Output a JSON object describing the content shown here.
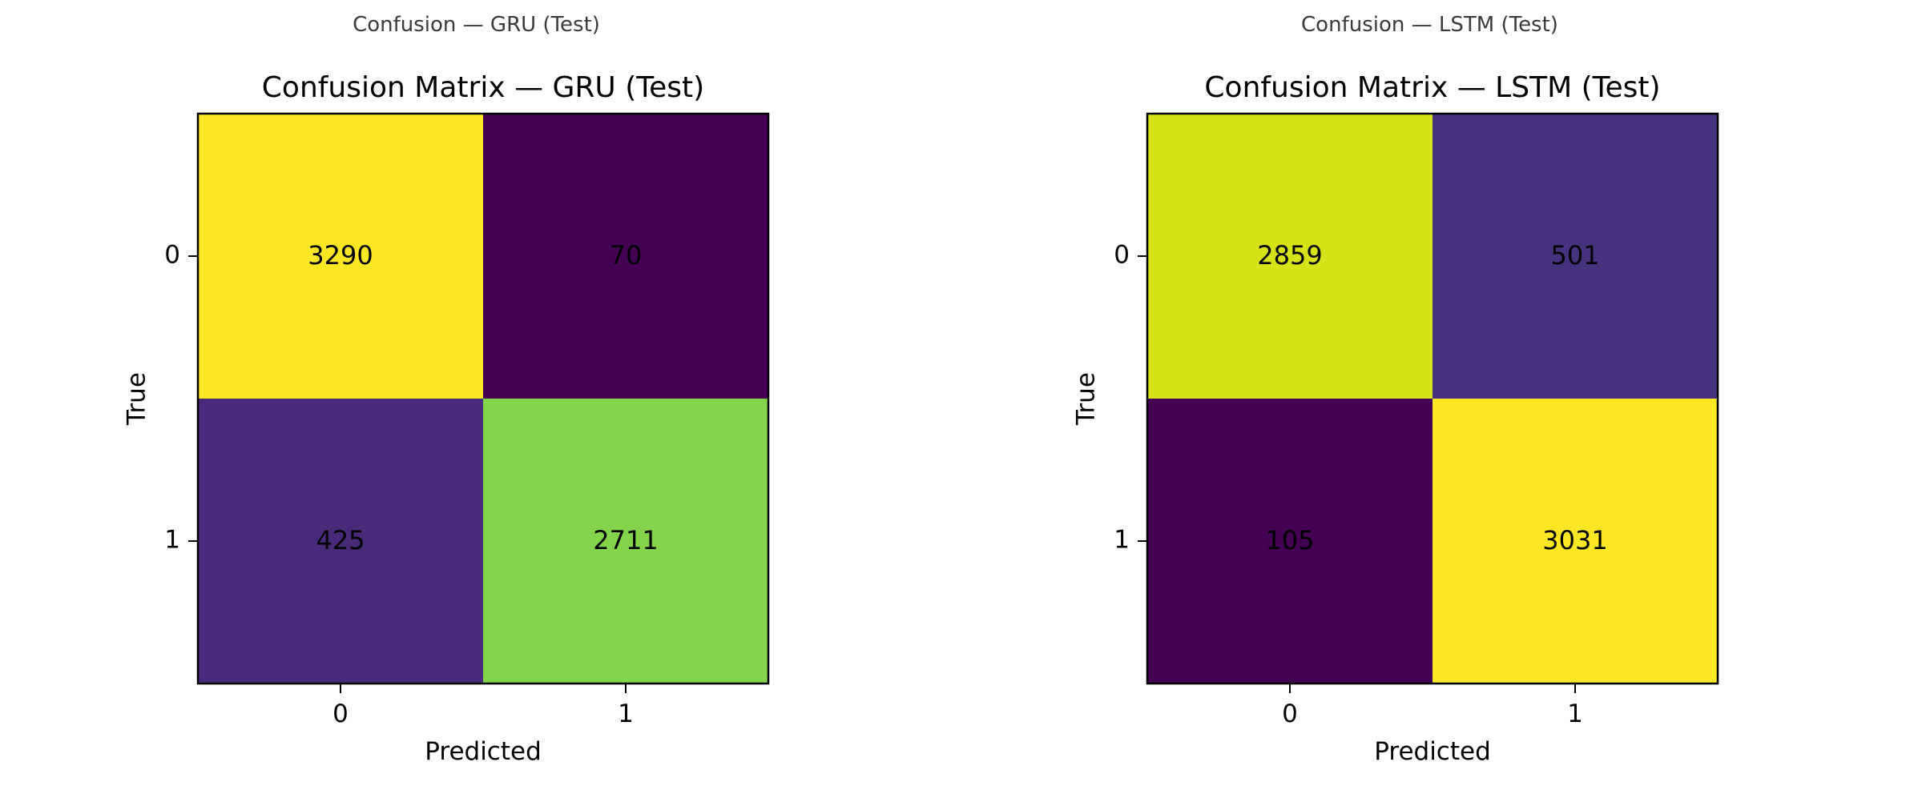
{
  "panels": [
    {
      "caption": "Confusion — GRU (Test)"
    },
    {
      "caption": "Confusion — LSTM (Test)"
    }
  ],
  "chart_data": [
    {
      "type": "heatmap",
      "title": "Confusion Matrix — GRU (Test)",
      "xlabel": "Predicted",
      "ylabel": "True",
      "x_categories": [
        "0",
        "1"
      ],
      "y_categories": [
        "0",
        "1"
      ],
      "values": [
        [
          3290,
          70
        ],
        [
          425,
          2711
        ]
      ],
      "colormap": "viridis",
      "colors": [
        [
          "#fde725",
          "#440154"
        ],
        [
          "#472a7a",
          "#84d44b"
        ]
      ]
    },
    {
      "type": "heatmap",
      "title": "Confusion Matrix — LSTM (Test)",
      "xlabel": "Predicted",
      "ylabel": "True",
      "x_categories": [
        "0",
        "1"
      ],
      "y_categories": [
        "0",
        "1"
      ],
      "values": [
        [
          2859,
          501
        ],
        [
          105,
          3031
        ]
      ],
      "colormap": "viridis",
      "colors": [
        [
          "#d8e219",
          "#46327e"
        ],
        [
          "#440154",
          "#fde725"
        ]
      ]
    }
  ]
}
